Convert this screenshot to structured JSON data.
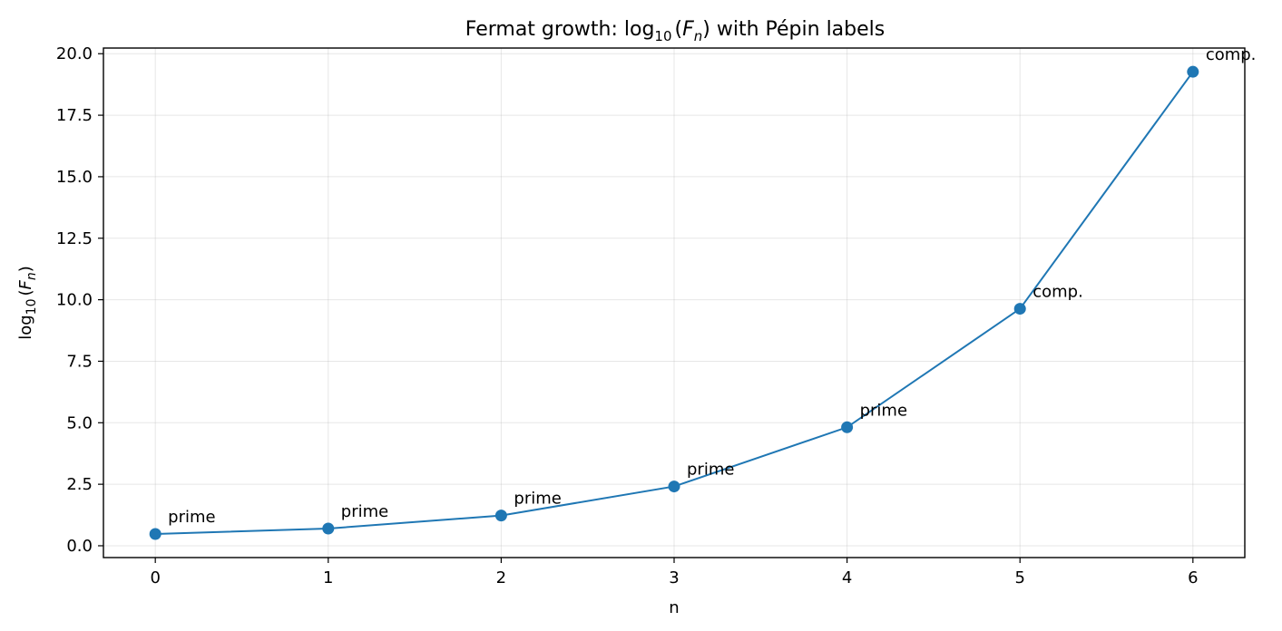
{
  "chart_data": {
    "type": "line",
    "title_main": "Fermat growth: log",
    "title_sub": "10",
    "title_open": "(",
    "title_var": "F",
    "title_var_sub": "n",
    "title_close": ")",
    "title_rest": " with Pépin labels",
    "xlabel": "n",
    "ylabel_main": "log",
    "ylabel_sub": "10",
    "ylabel_open": "(",
    "ylabel_var": "F",
    "ylabel_var_sub": "n",
    "ylabel_close": ")",
    "xlim": [
      -0.3,
      6.3
    ],
    "ylim": [
      -0.48,
      20.23
    ],
    "xticks": [
      0,
      1,
      2,
      3,
      4,
      5,
      6
    ],
    "xtick_labels": [
      "0",
      "1",
      "2",
      "3",
      "4",
      "5",
      "6"
    ],
    "yticks": [
      0,
      2.5,
      5,
      7.5,
      10,
      12.5,
      15,
      17.5,
      20
    ],
    "ytick_labels": [
      "0.0",
      "2.5",
      "5.0",
      "7.5",
      "10.0",
      "12.5",
      "15.0",
      "17.5",
      "20.0"
    ],
    "grid": true,
    "series": [
      {
        "x": [
          0,
          1,
          2,
          3,
          4,
          5,
          6
        ],
        "y": [
          0.477,
          0.699,
          1.23,
          2.41,
          4.816,
          9.633,
          19.266
        ],
        "labels": [
          "prime",
          "prime",
          "prime",
          "prime",
          "prime",
          "comp.",
          "comp."
        ],
        "color": "#1f77b4"
      }
    ]
  }
}
